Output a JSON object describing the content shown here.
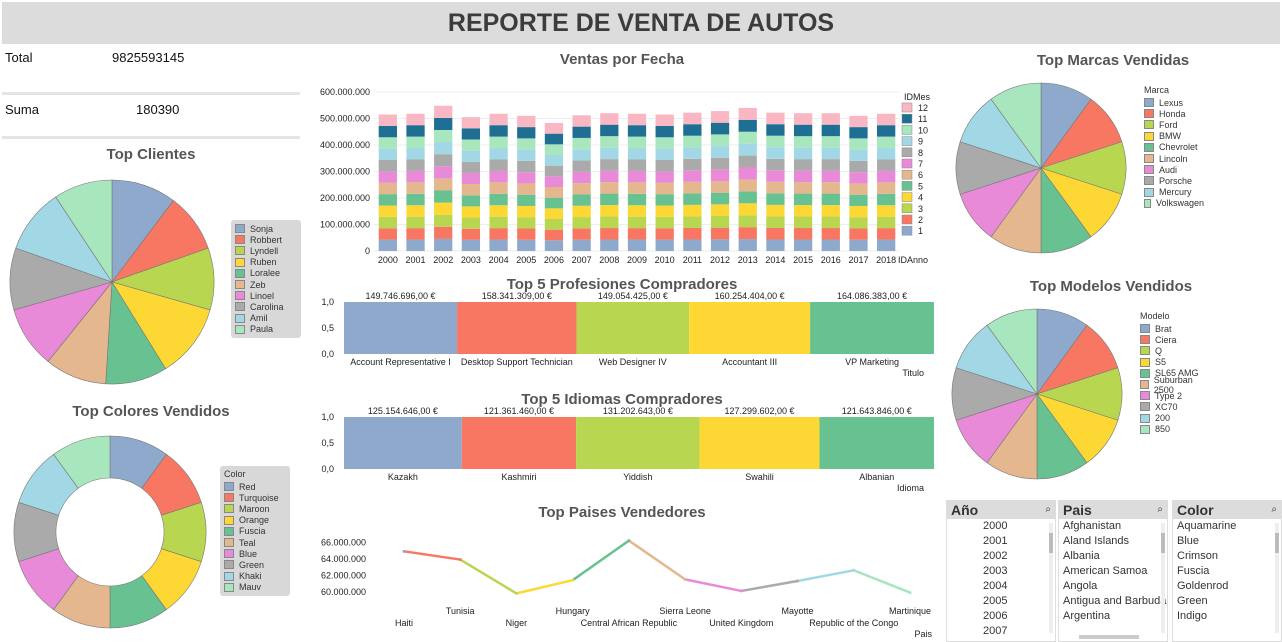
{
  "header": {
    "title": "REPORTE DE VENTA DE AUTOS"
  },
  "kpis": {
    "total_label": "Total",
    "total_value": "9825593145",
    "suma_label": "Suma",
    "suma_value": "180390"
  },
  "palette": [
    "#8ea9cc",
    "#f87763",
    "#b8d650",
    "#fdd834",
    "#67c190",
    "#e4b78f",
    "#e88ad7",
    "#aaaaaa",
    "#a2d8e6",
    "#a8e6bd",
    "#1f6e94",
    "#f9b7c4"
  ],
  "top_clientes": {
    "title": "Top Clientes",
    "chart_data": {
      "type": "pie",
      "categories": [
        "Sonja",
        "Robbert",
        "Lyndell",
        "Ruben",
        "Loralee",
        "Zeb",
        "Linoel",
        "Carolina",
        "Amil",
        "Paula"
      ],
      "values": [
        10.5,
        9.5,
        10,
        12,
        10,
        10,
        10,
        10,
        10.5,
        9.5
      ]
    }
  },
  "top_colores": {
    "title": "Top Colores Vendidos",
    "legend_title": "Color",
    "chart_data": {
      "type": "pie",
      "donut": true,
      "categories": [
        "Red",
        "Turquoise",
        "Maroon",
        "Orange",
        "Fuscia",
        "Teal",
        "Blue",
        "Green",
        "Khaki",
        "Mauv"
      ],
      "values": [
        10,
        10,
        10,
        10,
        10,
        10,
        10,
        10,
        10,
        10
      ]
    }
  },
  "ventas_fecha": {
    "title": "Ventas por Fecha",
    "legend_title": "IDMes",
    "x_axis_label": "IDAnno",
    "chart_data": {
      "type": "bar",
      "stacked": true,
      "categories": [
        "2000",
        "2001",
        "2002",
        "2003",
        "2004",
        "2005",
        "2006",
        "2007",
        "2008",
        "2009",
        "2010",
        "2011",
        "2012",
        "2013",
        "2014",
        "2015",
        "2016",
        "2017",
        "2018"
      ],
      "totals": [
        515000000,
        518000000,
        548000000,
        505000000,
        518000000,
        510000000,
        483000000,
        512000000,
        520000000,
        518000000,
        515000000,
        522000000,
        528000000,
        540000000,
        522000000,
        520000000,
        520000000,
        510000000,
        518000000
      ],
      "series_names": [
        "1",
        "2",
        "3",
        "4",
        "5",
        "6",
        "7",
        "8",
        "9",
        "10",
        "11",
        "12"
      ],
      "ylim": [
        0,
        600000000
      ],
      "yticks": [
        "0",
        "100.000.000",
        "200.000.000",
        "300.000.000",
        "400.000.000",
        "500.000.000",
        "600.000.000"
      ]
    }
  },
  "top_profesiones": {
    "title": "Top 5 Profesiones Compradores",
    "x_axis_label": "Titulo",
    "yticks": [
      "1,0",
      "0,5",
      "0,0"
    ],
    "chart_data": {
      "type": "bar",
      "categories": [
        "Account Representative I",
        "Desktop Support Technician",
        "Web Designer IV",
        "Accountant III",
        "VP Marketing"
      ],
      "values": [
        149746696,
        158341309,
        149054425,
        160254404,
        164086383
      ],
      "labels": [
        "149.746.696,00 €",
        "158.341.309,00 €",
        "149.054.425,00 €",
        "160.254.404,00 €",
        "164.086.383,00 €"
      ]
    }
  },
  "top_idiomas": {
    "title": "Top 5 Idiomas Compradores",
    "x_axis_label": "Idioma",
    "yticks": [
      "1,0",
      "0,5",
      "0,0"
    ],
    "chart_data": {
      "type": "bar",
      "categories": [
        "Kazakh",
        "Kashmiri",
        "Yiddish",
        "Swahili",
        "Albanian"
      ],
      "values": [
        125154646,
        121361460,
        131202643,
        127299602,
        121643846
      ],
      "labels": [
        "125.154.646,00 €",
        "121.361.460,00 €",
        "131.202.643,00 €",
        "127.299.602,00 €",
        "121.643.846,00 €"
      ]
    }
  },
  "top_paises": {
    "title": "Top Paises Vendedores",
    "x_axis_label": "Pais",
    "yticks": [
      "60.000.000",
      "62.000.000",
      "64.000.000",
      "66.000.000"
    ],
    "chart_data": {
      "type": "line",
      "categories": [
        "Haiti",
        "Tunisia",
        "Niger",
        "Hungary",
        "Central African Republic",
        "Sierra Leone",
        "United Kingdom",
        "Mayotte",
        "Republic of the Congo",
        "Martinique"
      ],
      "values": [
        64900000,
        63900000,
        59800000,
        61400000,
        66200000,
        61500000,
        60100000,
        61300000,
        62600000,
        59900000
      ],
      "ylim": [
        59000000,
        67000000
      ]
    }
  },
  "top_marcas": {
    "title": "Top Marcas Vendidas",
    "legend_title": "Marca",
    "chart_data": {
      "type": "pie",
      "categories": [
        "Lexus",
        "Honda",
        "Ford",
        "BMW",
        "Chevrolet",
        "Lincoln",
        "Audi",
        "Porsche",
        "Mercury",
        "Volkswagen"
      ],
      "values": [
        10,
        10,
        10,
        10,
        10,
        10,
        10,
        10,
        10,
        10
      ]
    }
  },
  "top_modelos": {
    "title": "Top Modelos Vendidos",
    "legend_title": "Modelo",
    "chart_data": {
      "type": "pie",
      "categories": [
        "Brat",
        "Ciera",
        "Q",
        "S5",
        "SL65 AMG",
        "Suburban 2500",
        "Type 2",
        "XC70",
        "200",
        "850"
      ],
      "values": [
        10,
        10,
        10,
        10,
        10,
        10,
        10,
        10,
        10,
        10
      ]
    }
  },
  "listbox_anio": {
    "title": "Año",
    "items": [
      "2000",
      "2001",
      "2002",
      "2003",
      "2004",
      "2005",
      "2006",
      "2007"
    ]
  },
  "listbox_pais": {
    "title": "Pais",
    "items": [
      "Afghanistan",
      "Aland Islands",
      "Albania",
      "American Samoa",
      "Angola",
      "Antigua and Barbuda",
      "Argentina"
    ]
  },
  "listbox_color": {
    "title": "Color",
    "items": [
      "Aquamarine",
      "Blue",
      "Crimson",
      "Fuscia",
      "Goldenrod",
      "Green",
      "Indigo"
    ]
  }
}
